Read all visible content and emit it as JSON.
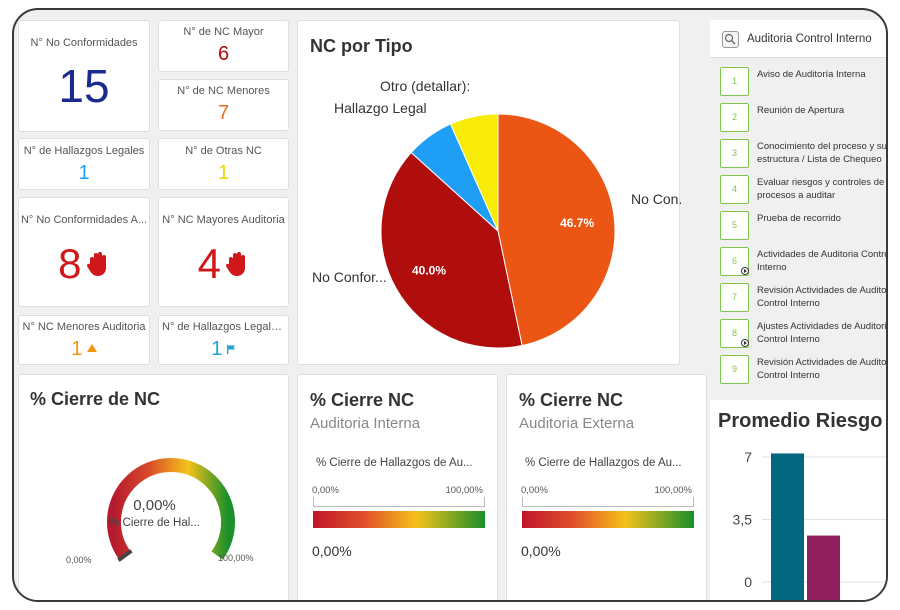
{
  "kpis": {
    "no_conformidades": {
      "label": "N° No Conformidades",
      "value": "15"
    },
    "nc_mayor": {
      "label": "N° de NC Mayor",
      "value": "6"
    },
    "nc_menores": {
      "label": "N° de NC Menores",
      "value": "7"
    },
    "hallazgos_legales": {
      "label": "N° de Hallazgos Legales",
      "value": "1"
    },
    "otras_nc": {
      "label": "N° de Otras NC",
      "value": "1"
    },
    "nc_auditoria": {
      "label": "N° No Conformidades A...",
      "value": "8"
    },
    "nc_mayores_auditoria": {
      "label": "N° NC Mayores Auditoria",
      "value": "4"
    },
    "nc_menores_auditoria": {
      "label": "N° NC Menores Auditoria",
      "value": "1"
    },
    "hallazgos_legales_auditoria": {
      "label": "N° de Hallazgos Legales...",
      "value": "1"
    }
  },
  "pie": {
    "title": "NC por Tipo",
    "chart_data": {
      "type": "pie",
      "slices": [
        {
          "label": "No Con...",
          "value": 46.7,
          "display": "46.7%",
          "color": "#ec5614"
        },
        {
          "label": "No Confor...",
          "value": 40.0,
          "display": "40.0%",
          "color": "#b00d0d"
        },
        {
          "label": "Hallazgo Legal",
          "value": 6.65,
          "display": "",
          "color": "#1e9ef5"
        },
        {
          "label": "Otro (detallar):",
          "value": 6.65,
          "display": "",
          "color": "#f9ec08"
        }
      ]
    }
  },
  "search": {
    "label": "Auditoria Control Interno"
  },
  "steps": [
    {
      "num": "1",
      "text": "Aviso de Auditoría Interna",
      "play": false
    },
    {
      "num": "2",
      "text": "Reunión de Apertura",
      "play": false
    },
    {
      "num": "3",
      "text": "Conocimiento del proceso y su estructura / Lista de Chequeo",
      "play": false
    },
    {
      "num": "4",
      "text": "Evaluar riesgos y controles de procesos a auditar",
      "play": false
    },
    {
      "num": "5",
      "text": "Prueba de recorrido",
      "play": false
    },
    {
      "num": "6",
      "text": "Actividades de Auditoria Control Interno",
      "play": true
    },
    {
      "num": "7",
      "text": "Revisión Actividades de Auditoria Control Interno",
      "play": false
    },
    {
      "num": "8",
      "text": "Ajustes Actividades de Auditoria Control Interno",
      "play": true
    },
    {
      "num": "9",
      "text": "Revisión Actividades de Auditoria Control Interno",
      "play": false
    }
  ],
  "gauge": {
    "title": "% Cierre de NC",
    "value": "0,00%",
    "label": "% Cierre de Hal...",
    "min": "0,00%",
    "max": "100,00%",
    "fraction": 0
  },
  "bar_interna": {
    "title": "% Cierre NC",
    "subtitle": "Auditoria Interna",
    "label": "% Cierre de Hallazgos de Au...",
    "min": "0,00%",
    "max": "100,00%",
    "value": "0,00%"
  },
  "bar_externa": {
    "title": "% Cierre NC",
    "subtitle": "Auditoria Externa",
    "label": "% Cierre de Hallazgos de Au...",
    "min": "0,00%",
    "max": "100,00%",
    "value": "0,00%"
  },
  "promedio": {
    "title": "Promedio Riesgo",
    "chart_data": {
      "type": "bar",
      "ylim": [
        0,
        7
      ],
      "ticks": [
        "7",
        "3,5",
        "0"
      ],
      "values": [
        7.2,
        2.6
      ],
      "colors": [
        "#046780",
        "#8e1f5c"
      ]
    }
  }
}
